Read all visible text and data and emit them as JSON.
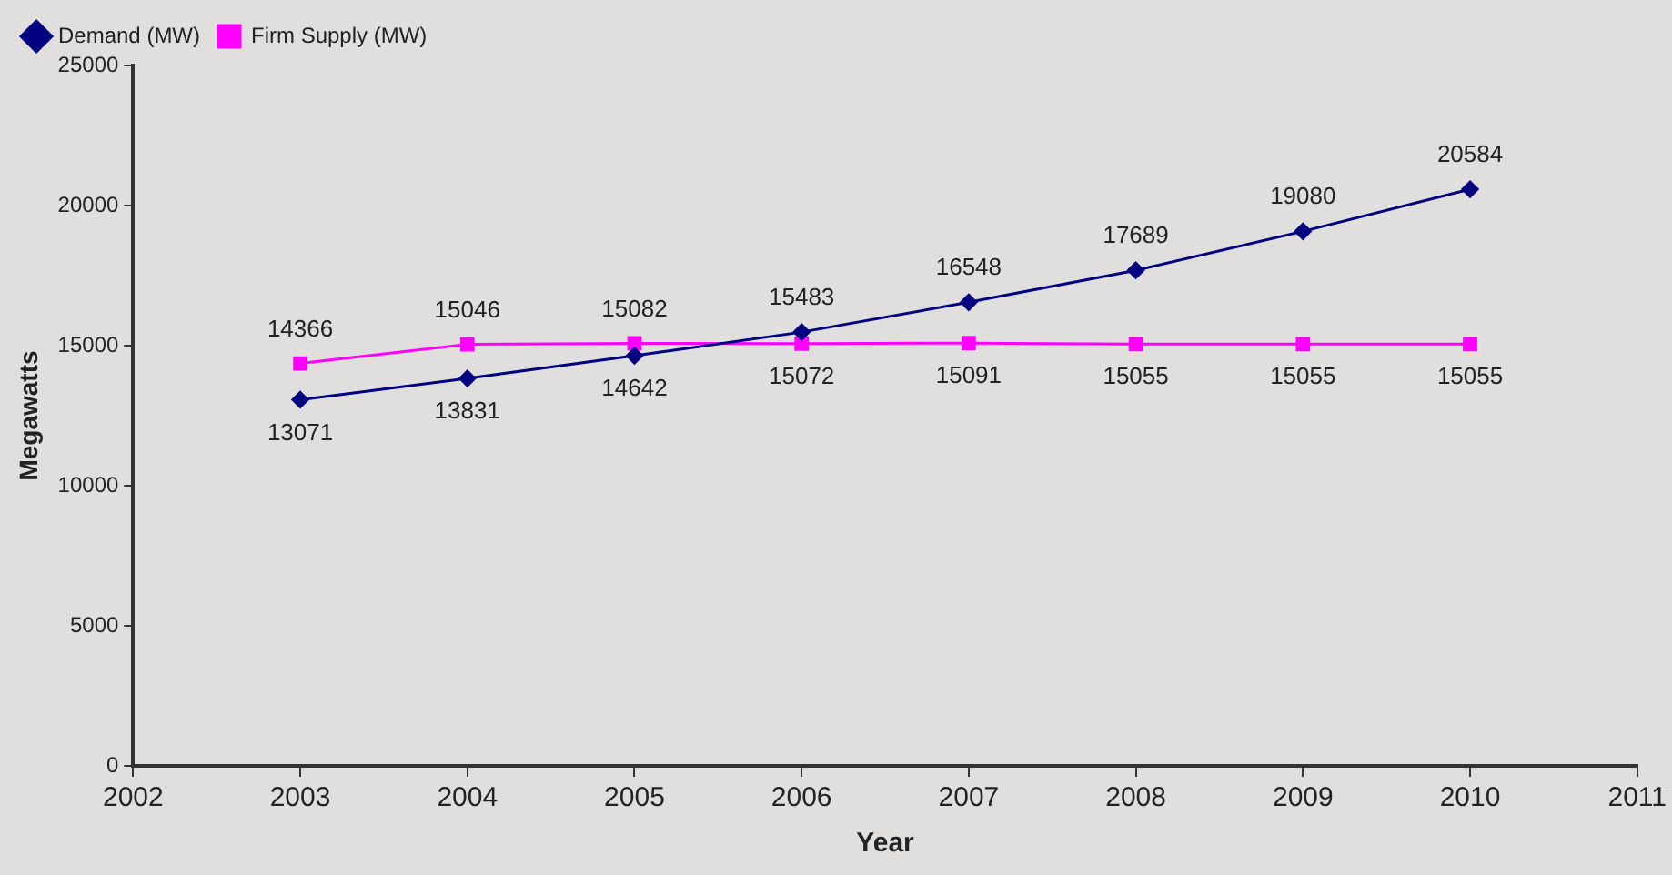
{
  "chart_data": {
    "type": "line",
    "xlabel": "Year",
    "ylabel": "Megawatts",
    "x": [
      2003,
      2004,
      2005,
      2006,
      2007,
      2008,
      2009,
      2010
    ],
    "series": [
      {
        "name": "Demand (MW)",
        "color": "#000080",
        "marker": "diamond",
        "values": [
          13071,
          13831,
          14642,
          15483,
          16548,
          17689,
          19080,
          20584
        ]
      },
      {
        "name": "Firm Supply (MW)",
        "color": "#ff00ff",
        "marker": "square",
        "values": [
          14366,
          15046,
          15082,
          15072,
          15091,
          15055,
          15055,
          15055
        ]
      }
    ],
    "xlim": [
      2002,
      2011
    ],
    "xticks": [
      2002,
      2003,
      2004,
      2005,
      2006,
      2007,
      2008,
      2009,
      2010,
      2011
    ],
    "ylim": [
      0,
      25000
    ],
    "yticks": [
      0,
      5000,
      10000,
      15000,
      20000,
      25000
    ],
    "grid": false,
    "legend": "top left",
    "data_labels": true
  }
}
